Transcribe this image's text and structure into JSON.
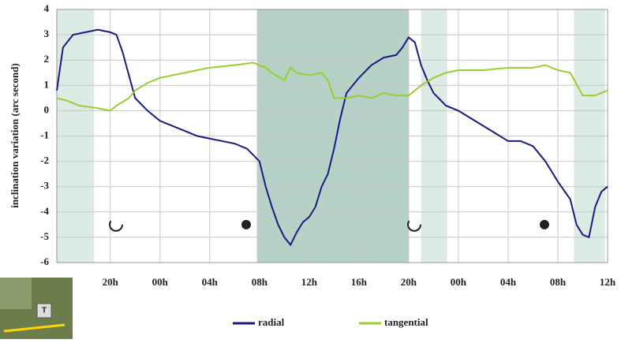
{
  "chart_data": {
    "type": "line",
    "y_label": "inclination variation (arc second)",
    "xlim": [
      15.7,
      60
    ],
    "ylim": [
      -6,
      4
    ],
    "xticks": [
      {
        "value": 20,
        "label": "20h"
      },
      {
        "value": 24,
        "label": "00h"
      },
      {
        "value": 28,
        "label": "04h"
      },
      {
        "value": 32,
        "label": "08h"
      },
      {
        "value": 36,
        "label": "12h"
      },
      {
        "value": 40,
        "label": "16h"
      },
      {
        "value": 44,
        "label": "20h"
      },
      {
        "value": 48,
        "label": "00h"
      },
      {
        "value": 52,
        "label": "04h"
      },
      {
        "value": 56,
        "label": "08h"
      },
      {
        "value": 60,
        "label": "12h"
      }
    ],
    "yticks": [
      -6,
      -5,
      -4,
      -3,
      -2,
      -1,
      0,
      1,
      2,
      3,
      4
    ],
    "grid": true,
    "shaded_spans": [
      [
        15.7,
        18.7
      ],
      [
        31.8,
        44.0
      ],
      [
        45.0,
        47.1
      ],
      [
        57.3,
        59.8
      ]
    ],
    "map_inset_label": "T",
    "series": [
      {
        "name": "radial",
        "color": "#1a1a80",
        "x": [
          15.7,
          16.2,
          17,
          18,
          19,
          20,
          20.5,
          21,
          21.5,
          22,
          23,
          24,
          25,
          26,
          27,
          28,
          29,
          30,
          31,
          32,
          32.5,
          33,
          33.5,
          34,
          34.5,
          35,
          35.5,
          36,
          36.5,
          37,
          37.5,
          38,
          38.5,
          39,
          40,
          41,
          42,
          43,
          43.5,
          44,
          44.5,
          45,
          45.5,
          46,
          47,
          48,
          49,
          50,
          51,
          52,
          53,
          54,
          55,
          56,
          57,
          57.5,
          58,
          58.5,
          59,
          59.5,
          60
        ],
        "values": [
          0.8,
          2.5,
          3.0,
          3.1,
          3.2,
          3.1,
          3.0,
          2.3,
          1.4,
          0.5,
          0,
          -0.4,
          -0.6,
          -0.8,
          -1.0,
          -1.1,
          -1.2,
          -1.3,
          -1.5,
          -2.0,
          -3.0,
          -3.8,
          -4.5,
          -5.0,
          -5.3,
          -4.8,
          -4.4,
          -4.2,
          -3.8,
          -3.0,
          -2.5,
          -1.5,
          -0.3,
          0.7,
          1.3,
          1.8,
          2.1,
          2.2,
          2.5,
          2.9,
          2.7,
          1.8,
          1.2,
          0.7,
          0.2,
          0,
          -0.3,
          -0.6,
          -0.9,
          -1.2,
          -1.2,
          -1.4,
          -2.0,
          -2.8,
          -3.5,
          -4.5,
          -4.9,
          -5.0,
          -3.8,
          -3.2,
          -3.0
        ]
      },
      {
        "name": "tangential",
        "color": "#9acd32",
        "x": [
          15.7,
          16.5,
          17.5,
          19,
          20,
          20.5,
          21.5,
          22,
          23,
          24,
          26,
          28,
          30,
          31.5,
          32.5,
          33,
          34,
          34.5,
          35,
          36,
          37,
          37.5,
          38,
          39,
          40,
          41,
          42,
          43,
          44,
          45,
          46,
          47,
          48,
          50,
          52,
          54,
          55,
          56,
          57,
          58,
          59,
          60
        ],
        "values": [
          0.5,
          0.4,
          0.2,
          0.1,
          0,
          0.2,
          0.5,
          0.8,
          1.1,
          1.3,
          1.5,
          1.7,
          1.8,
          1.9,
          1.7,
          1.5,
          1.2,
          1.7,
          1.5,
          1.4,
          1.5,
          1.2,
          0.5,
          0.5,
          0.6,
          0.5,
          0.7,
          0.6,
          0.6,
          1.0,
          1.3,
          1.5,
          1.6,
          1.6,
          1.7,
          1.7,
          1.8,
          1.6,
          1.5,
          0.6,
          0.6,
          0.8
        ]
      }
    ]
  }
}
